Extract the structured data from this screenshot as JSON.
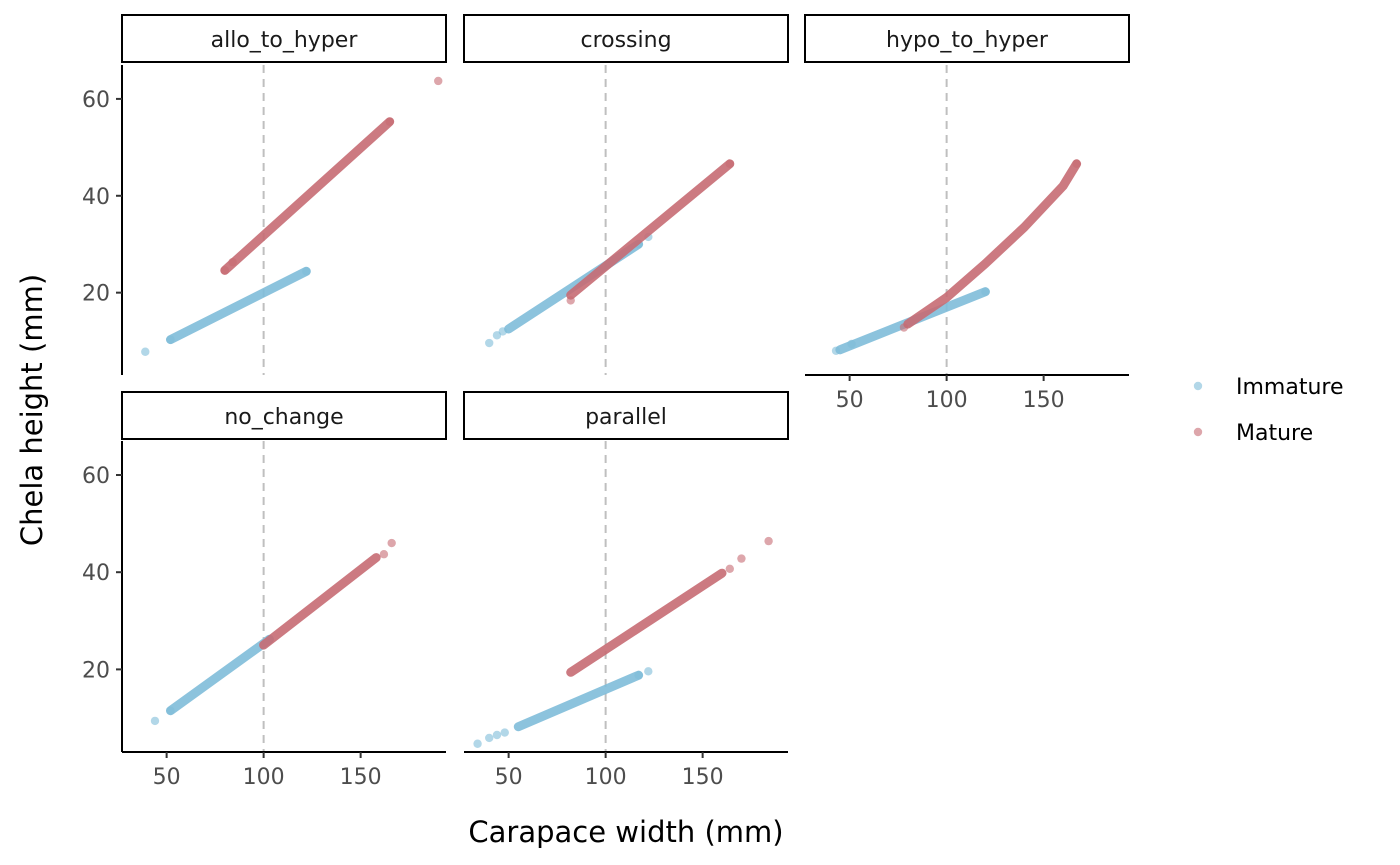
{
  "chart_data": {
    "type": "scatter",
    "xlabel": "Carapace width (mm)",
    "ylabel": "Chela height (mm)",
    "xlim": [
      27,
      194
    ],
    "ylim": [
      3,
      67
    ],
    "x_ticks": [
      50,
      100,
      150
    ],
    "y_ticks": [
      20,
      40,
      60
    ],
    "reference_line": {
      "x": 100,
      "style": "dashed",
      "color": "#bfbfbf"
    },
    "legend": {
      "position": "right",
      "entries": [
        {
          "name": "Immature",
          "color": "#7fbcd9"
        },
        {
          "name": "Mature",
          "color": "#c76b73"
        }
      ]
    },
    "panels": [
      {
        "name": "allo_to_hyper",
        "series": [
          {
            "name": "Immature",
            "lines": [
              {
                "x": [
                  52,
                  122
                ],
                "y": [
                  10.3,
                  24.4
                ]
              }
            ],
            "points": [
              [
                39,
                7.8
              ],
              [
                52,
                10.3
              ],
              [
                122,
                24.4
              ]
            ]
          },
          {
            "name": "Mature",
            "lines": [
              {
                "x": [
                  80,
                  165
                ],
                "y": [
                  24.6,
                  55.3
                ]
              }
            ],
            "points": [
              [
                80,
                24.6
              ],
              [
                84,
                26.3
              ],
              [
                165,
                55.3
              ],
              [
                190,
                63.7
              ]
            ]
          }
        ]
      },
      {
        "name": "crossing",
        "series": [
          {
            "name": "Immature",
            "lines": [
              {
                "x": [
                  50,
                  117
                ],
                "y": [
                  12.5,
                  30.0
                ]
              }
            ],
            "points": [
              [
                40,
                9.6
              ],
              [
                44,
                11.2
              ],
              [
                47,
                12.0
              ],
              [
                117,
                30.0
              ],
              [
                122,
                31.5
              ]
            ]
          },
          {
            "name": "Mature",
            "lines": [
              {
                "x": [
                  82,
                  164
                ],
                "y": [
                  19.5,
                  46.6
                ]
              }
            ],
            "points": [
              [
                82,
                18.4
              ],
              [
                164,
                46.6
              ]
            ]
          }
        ]
      },
      {
        "name": "hypo_to_hyper",
        "series": [
          {
            "name": "Immature",
            "lines": [
              {
                "x": [
                  45,
                  120
                ],
                "y": [
                  8.2,
                  20.2
                ]
              }
            ],
            "points": [
              [
                43,
                8.0
              ],
              [
                51,
                9.4
              ],
              [
                120,
                20.2
              ]
            ]
          },
          {
            "name": "Mature",
            "curve": {
              "x": [
                80,
                100,
                120,
                140,
                160,
                167
              ],
              "y": [
                13.5,
                19.0,
                26.0,
                33.5,
                42.0,
                46.6
              ]
            },
            "points": [
              [
                78,
                12.8
              ],
              [
                167,
                46.6
              ]
            ]
          }
        ]
      },
      {
        "name": "no_change",
        "series": [
          {
            "name": "Immature",
            "lines": [
              {
                "x": [
                  52,
                  103
                ],
                "y": [
                  11.5,
                  26.2
                ]
              }
            ],
            "points": [
              [
                44,
                9.4
              ],
              [
                52,
                11.5
              ],
              [
                103,
                26.2
              ]
            ]
          },
          {
            "name": "Mature",
            "lines": [
              {
                "x": [
                  100,
                  158
                ],
                "y": [
                  25.0,
                  43.0
                ]
              }
            ],
            "points": [
              [
                162,
                43.7
              ],
              [
                166,
                46.0
              ]
            ]
          }
        ]
      },
      {
        "name": "parallel",
        "series": [
          {
            "name": "Immature",
            "lines": [
              {
                "x": [
                  55,
                  117
                ],
                "y": [
                  8.2,
                  18.8
                ]
              }
            ],
            "points": [
              [
                34,
                4.7
              ],
              [
                40,
                5.9
              ],
              [
                44,
                6.5
              ],
              [
                48,
                7.0
              ],
              [
                117,
                18.8
              ],
              [
                122,
                19.6
              ]
            ]
          },
          {
            "name": "Mature",
            "lines": [
              {
                "x": [
                  82,
                  160
                ],
                "y": [
                  19.4,
                  39.8
                ]
              }
            ],
            "points": [
              [
                164,
                40.7
              ],
              [
                170,
                42.8
              ],
              [
                184,
                46.4
              ]
            ]
          }
        ]
      }
    ]
  }
}
